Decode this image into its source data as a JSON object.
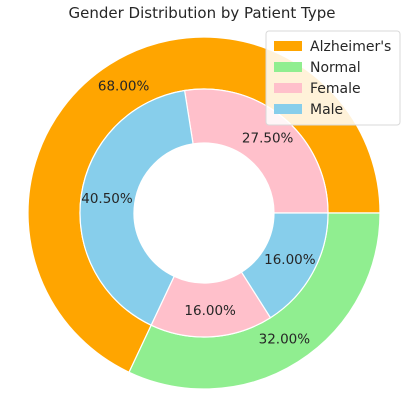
{
  "chart_data": {
    "type": "pie",
    "title": "Gender Distribution by Patient Type",
    "outer": {
      "slices": [
        {
          "label": "Alzheimer's",
          "value": 68.0,
          "display": "68.00%",
          "color": "#ffa500"
        },
        {
          "label": "Normal",
          "value": 32.0,
          "display": "32.00%",
          "color": "#90ee90"
        }
      ]
    },
    "inner": {
      "slices": [
        {
          "group": "Alzheimer's",
          "label": "Female",
          "value": 27.5,
          "display": "27.50%",
          "color": "#ffc0cb"
        },
        {
          "group": "Alzheimer's",
          "label": "Male",
          "value": 40.5,
          "display": "40.50%",
          "color": "#87ceeb"
        },
        {
          "group": "Normal",
          "label": "Female",
          "value": 16.0,
          "display": "16.00%",
          "color": "#ffc0cb"
        },
        {
          "group": "Normal",
          "label": "Male",
          "value": 16.0,
          "display": "16.00%",
          "color": "#87ceeb"
        }
      ]
    },
    "legend": {
      "placement": "top-right",
      "entries": [
        {
          "label": "Alzheimer's",
          "color": "#ffa500"
        },
        {
          "label": "Normal",
          "color": "#90ee90"
        },
        {
          "label": "Female",
          "color": "#ffc0cb"
        },
        {
          "label": "Male",
          "color": "#87ceeb"
        }
      ]
    }
  }
}
